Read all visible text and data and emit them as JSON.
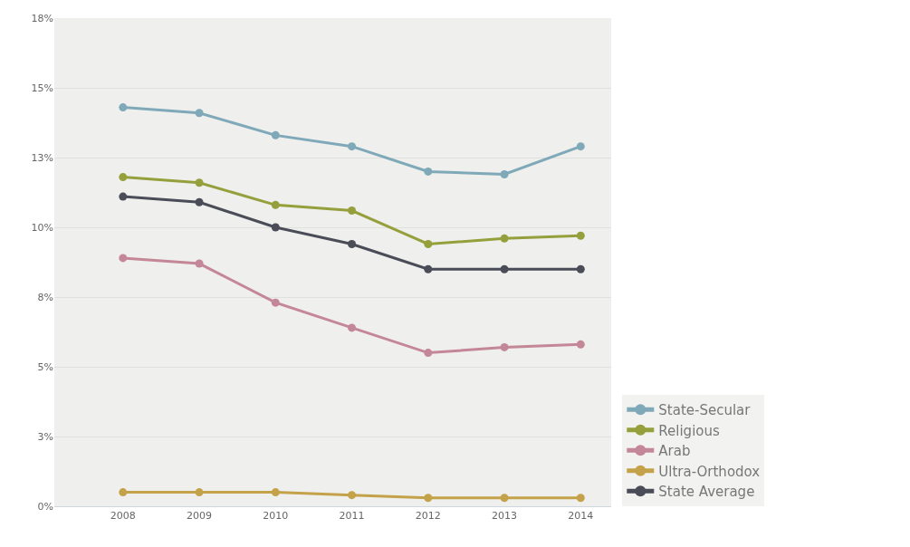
{
  "chart_data": {
    "type": "line",
    "categories": [
      "2008",
      "2009",
      "2010",
      "2011",
      "2012",
      "2013",
      "2014"
    ],
    "series": [
      {
        "name": "State-Secular",
        "color": "#7fa9b8",
        "values": [
          14.3,
          14.1,
          13.3,
          12.9,
          12.0,
          11.9,
          12.9
        ]
      },
      {
        "name": "Religious",
        "color": "#95a03c",
        "values": [
          11.8,
          11.6,
          10.8,
          10.6,
          9.4,
          9.6,
          9.7
        ]
      },
      {
        "name": "Arab",
        "color": "#c48797",
        "values": [
          8.9,
          8.7,
          7.3,
          6.4,
          5.5,
          5.7,
          5.8
        ]
      },
      {
        "name": "Ultra-Orthodox",
        "color": "#c4a24a",
        "values": [
          0.5,
          0.5,
          0.5,
          0.4,
          0.3,
          0.3,
          0.3
        ]
      },
      {
        "name": "State Average",
        "color": "#4a4c58",
        "values": [
          11.1,
          10.9,
          10.0,
          9.4,
          8.5,
          8.5,
          8.5
        ]
      }
    ],
    "ylim": [
      0,
      17.5
    ],
    "yticks": [
      {
        "value": 0,
        "label": "0%"
      },
      {
        "value": 2.5,
        "label": "3%"
      },
      {
        "value": 5,
        "label": "5%"
      },
      {
        "value": 7.5,
        "label": "8%"
      },
      {
        "value": 10,
        "label": "10%"
      },
      {
        "value": 12.5,
        "label": "13%"
      },
      {
        "value": 15,
        "label": "15%"
      },
      {
        "value": 17.5,
        "label": "18%"
      }
    ],
    "grid": "y",
    "legend": "bottom right",
    "marker": "circle",
    "line_style": "solid"
  }
}
